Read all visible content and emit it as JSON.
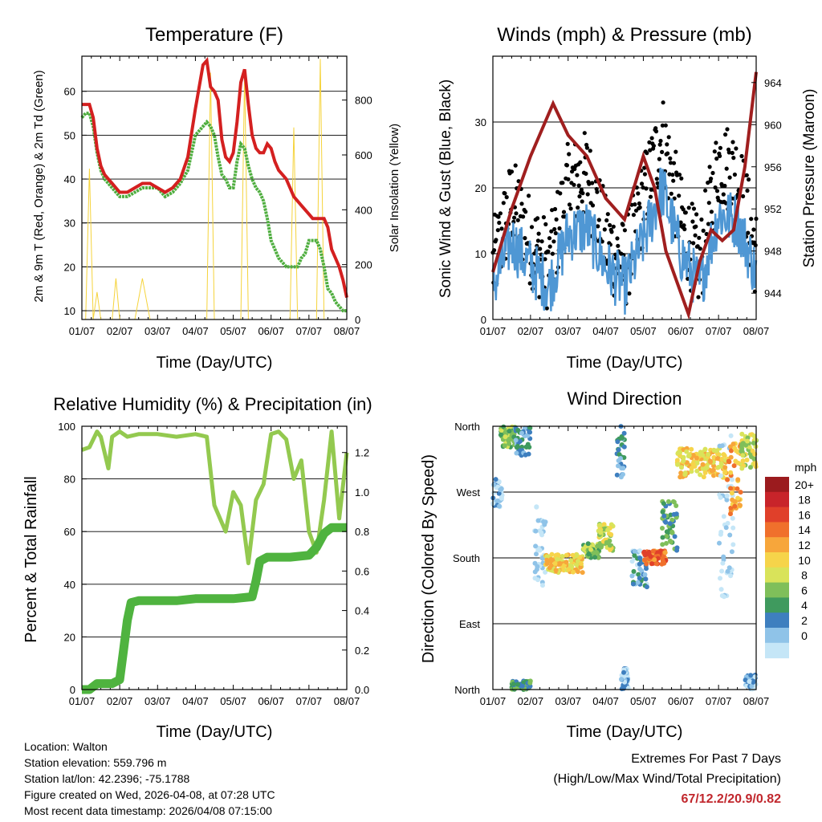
{
  "footer": {
    "location": "Location: Walton",
    "elevation": "Station elevation: 559.796 m",
    "latlon": "Station lat/lon: 42.2396; -75.1788",
    "created": "Figure created on Wed, 2026-04-08, at 07:28 UTC",
    "recent": "Most recent data timestamp: 2026/04/08 07:15:00",
    "extremes_title": "Extremes For Past 7 Days",
    "extremes_sub": "(High/Low/Max Wind/Total Precipitation)",
    "extremes_values": "67/12.2/20.9/0.82"
  },
  "colors": {
    "temp": "#d42020",
    "dewpoint": "#4fae3f",
    "solar": "#f5d33b",
    "wind": "#4f97d4",
    "gust": "#000000",
    "pressure": "#a01f1f",
    "rh": "#93c94f",
    "precip": "#4fb33f"
  },
  "chart_data": [
    {
      "type": "line",
      "title": "Temperature (F)",
      "xlabel": "Time (Day/UTC)",
      "ylabel": "2m & 9m T (Red, Orange) & 2m Td (Green)",
      "y2label": "Solar Insolation (Yellow)",
      "x_ticks": [
        "01/07",
        "02/07",
        "03/07",
        "04/07",
        "05/07",
        "06/07",
        "07/07",
        "08/07"
      ],
      "ylim": [
        8,
        68
      ],
      "y_ticks": [
        "10",
        "20",
        "30",
        "40",
        "50",
        "60"
      ],
      "y2lim": [
        0,
        960
      ],
      "y2_ticks": [
        "0",
        "200",
        "400",
        "600",
        "800"
      ],
      "x": [
        0,
        0.1,
        0.2,
        0.3,
        0.4,
        0.5,
        0.6,
        0.7,
        0.8,
        0.9,
        1.0,
        1.2,
        1.4,
        1.6,
        1.8,
        2.0,
        2.2,
        2.4,
        2.6,
        2.8,
        3.0,
        3.2,
        3.3,
        3.4,
        3.5,
        3.6,
        3.7,
        3.8,
        3.9,
        4.0,
        4.1,
        4.2,
        4.3,
        4.4,
        4.5,
        4.6,
        4.7,
        4.8,
        4.9,
        5.0,
        5.1,
        5.2,
        5.3,
        5.4,
        5.5,
        5.6,
        5.7,
        5.8,
        5.9,
        6.0,
        6.1,
        6.2,
        6.3,
        6.4,
        6.5,
        6.6,
        6.7,
        6.8,
        6.9,
        7.0
      ],
      "series": [
        {
          "name": "2m T",
          "values": [
            57,
            57,
            57,
            54,
            47,
            43,
            41,
            40,
            39,
            38,
            37,
            37,
            38,
            39,
            39,
            38,
            37,
            38,
            40,
            45,
            56,
            66,
            67,
            61,
            60,
            58,
            49,
            45,
            44,
            46,
            53,
            62,
            65,
            57,
            50,
            47,
            46,
            46,
            48,
            47,
            44,
            42,
            41,
            40,
            38,
            36,
            35,
            34,
            33,
            32,
            31,
            31,
            31,
            31,
            29,
            24,
            22,
            20,
            17,
            13
          ]
        },
        {
          "name": "2m Td",
          "values": [
            54,
            55,
            55,
            52,
            46,
            42,
            40,
            39,
            38,
            37,
            36,
            36,
            37,
            38,
            38,
            38,
            36,
            37,
            39,
            42,
            50,
            52,
            53,
            52,
            50,
            45,
            41,
            40,
            38,
            38,
            44,
            48,
            47,
            43,
            40,
            38,
            37,
            35,
            31,
            26,
            24,
            22,
            21,
            20,
            20,
            20,
            20,
            22,
            23,
            26,
            26,
            26,
            24,
            20,
            15,
            14,
            12,
            11,
            10,
            10
          ]
        },
        {
          "name": "Solar",
          "values": [
            0,
            0,
            550,
            0,
            100,
            0,
            0,
            0,
            0,
            150,
            0,
            0,
            0,
            150,
            0,
            0,
            0,
            0,
            0,
            0,
            0,
            0,
            0,
            900,
            0,
            0,
            0,
            0,
            0,
            0,
            0,
            0,
            900,
            0,
            0,
            0,
            0,
            0,
            0,
            0,
            0,
            0,
            0,
            0,
            0,
            700,
            0,
            0,
            0,
            0,
            0,
            0,
            950,
            0,
            0,
            0,
            0,
            0,
            0,
            0
          ]
        }
      ]
    },
    {
      "type": "scatter",
      "title": "Winds (mph) & Pressure (mb)",
      "xlabel": "Time (Day/UTC)",
      "ylabel": "Sonic Wind & Gust (Blue, Black)",
      "y2label": "Station Pressure (Maroon)",
      "x_ticks": [
        "01/07",
        "02/07",
        "03/07",
        "04/07",
        "05/07",
        "06/07",
        "07/07",
        "08/07"
      ],
      "ylim": [
        0,
        40
      ],
      "y_ticks": [
        "0",
        "10",
        "20",
        "30"
      ],
      "y2lim": [
        941.5,
        966.5
      ],
      "y2_ticks": [
        "944",
        "948",
        "952",
        "956",
        "960",
        "964"
      ],
      "x": [
        0,
        0.5,
        1.0,
        1.5,
        2.0,
        2.5,
        3.0,
        3.5,
        4.0,
        4.5,
        5.0,
        5.5,
        6.0,
        6.5,
        7.0
      ],
      "series": [
        {
          "name": "Sonic Wind",
          "values": [
            5,
            12,
            8,
            5,
            13,
            14,
            8,
            5,
            12,
            20,
            10,
            5,
            16,
            15,
            7
          ]
        },
        {
          "name": "Gust",
          "values": [
            8,
            18,
            12,
            8,
            20,
            22,
            12,
            8,
            18,
            28,
            15,
            8,
            24,
            22,
            10
          ]
        },
        {
          "name": "Pressure",
          "x": [
            0,
            0.5,
            1.0,
            1.6,
            2.0,
            2.5,
            3.0,
            3.5,
            4.0,
            4.3,
            4.6,
            5.0,
            5.2,
            5.5,
            5.8,
            6.1,
            6.4,
            6.7,
            7.0
          ],
          "values": [
            946,
            952,
            957,
            962,
            959,
            957,
            953,
            951,
            957,
            954,
            948,
            944,
            942,
            947,
            950,
            949,
            950,
            956,
            965
          ]
        }
      ]
    },
    {
      "type": "line",
      "title": "Relative Humidity (%) & Precipitation (in)",
      "xlabel": "Time (Day/UTC)",
      "ylabel": "Percent & Total Rainfall",
      "x_ticks": [
        "01/07",
        "02/07",
        "03/07",
        "04/07",
        "05/07",
        "06/07",
        "07/07",
        "08/07"
      ],
      "ylim": [
        0,
        100
      ],
      "y_ticks": [
        "0",
        "20",
        "40",
        "60",
        "80",
        "100"
      ],
      "y2lim": [
        0,
        1.333
      ],
      "y2_ticks": [
        "0.0",
        "0.2",
        "0.4",
        "0.6",
        "0.8",
        "1.0",
        "1.2"
      ],
      "series": [
        {
          "name": "RH",
          "x": [
            0,
            0.2,
            0.4,
            0.5,
            0.6,
            0.7,
            0.8,
            1.0,
            1.2,
            1.5,
            2.0,
            2.5,
            3.0,
            3.3,
            3.5,
            3.8,
            4.0,
            4.2,
            4.4,
            4.6,
            4.8,
            5.0,
            5.2,
            5.4,
            5.6,
            5.8,
            6.0,
            6.2,
            6.4,
            6.6,
            6.8,
            7.0
          ],
          "values": [
            91,
            92,
            98,
            96,
            90,
            84,
            96,
            98,
            96,
            97,
            97,
            96,
            97,
            96,
            70,
            60,
            75,
            70,
            48,
            72,
            78,
            97,
            98,
            95,
            80,
            87,
            60,
            52,
            72,
            98,
            65,
            90
          ]
        },
        {
          "name": "Precipitation",
          "x": [
            0,
            0.2,
            0.4,
            0.8,
            1.0,
            1.1,
            1.2,
            1.3,
            1.5,
            2.0,
            2.5,
            3.0,
            3.5,
            4.0,
            4.5,
            4.6,
            4.7,
            4.9,
            5.0,
            5.5,
            6.0,
            6.2,
            6.4,
            6.6,
            7.0
          ],
          "values": [
            0,
            0,
            0.03,
            0.03,
            0.05,
            0.2,
            0.35,
            0.44,
            0.45,
            0.45,
            0.45,
            0.46,
            0.46,
            0.46,
            0.47,
            0.55,
            0.65,
            0.67,
            0.67,
            0.67,
            0.68,
            0.72,
            0.79,
            0.82,
            0.82
          ]
        }
      ]
    },
    {
      "type": "scatter",
      "title": "Wind Direction",
      "xlabel": "Time (Day/UTC)",
      "ylabel": "Direction (Colored By Speed)",
      "x_ticks": [
        "01/07",
        "02/07",
        "03/07",
        "04/07",
        "05/07",
        "06/07",
        "07/07",
        "08/07"
      ],
      "y_ticks": [
        "North",
        "East",
        "South",
        "West",
        "North"
      ],
      "ylim": [
        0,
        360
      ],
      "legend_title": "mph",
      "legend_labels": [
        "20+",
        "18",
        "16",
        "14",
        "12",
        "10",
        "8",
        "6",
        "4",
        "2",
        "0"
      ],
      "legend_colors": [
        "#9b1b1e",
        "#c8242a",
        "#e0402a",
        "#f0702c",
        "#f7a63b",
        "#f6d44a",
        "#d9e35a",
        "#7fbf5a",
        "#3f9a5e",
        "#3e7fbf",
        "#8fc3e8",
        "#c5e6f7"
      ],
      "clusters": [
        {
          "x0": 0.0,
          "x1": 0.25,
          "d0": 250,
          "d1": 290,
          "speed": 4
        },
        {
          "x0": 0.2,
          "x1": 0.6,
          "d0": 330,
          "d1": 360,
          "speed": 10
        },
        {
          "x0": 0.6,
          "x1": 1.0,
          "d0": 320,
          "d1": 360,
          "speed": 6
        },
        {
          "x0": 0.5,
          "x1": 1.0,
          "d0": 0,
          "d1": 12,
          "speed": 8
        },
        {
          "x0": 1.1,
          "x1": 1.4,
          "d0": 140,
          "d1": 250,
          "speed": 2
        },
        {
          "x0": 1.4,
          "x1": 2.4,
          "d0": 160,
          "d1": 185,
          "speed": 14
        },
        {
          "x0": 2.4,
          "x1": 2.9,
          "d0": 180,
          "d1": 200,
          "speed": 10
        },
        {
          "x0": 2.8,
          "x1": 3.2,
          "d0": 190,
          "d1": 230,
          "speed": 12
        },
        {
          "x0": 3.3,
          "x1": 3.5,
          "d0": 290,
          "d1": 360,
          "speed": 6
        },
        {
          "x0": 3.4,
          "x1": 3.6,
          "d0": 0,
          "d1": 30,
          "speed": 4
        },
        {
          "x0": 3.7,
          "x1": 4.1,
          "d0": 140,
          "d1": 190,
          "speed": 5
        },
        {
          "x0": 4.0,
          "x1": 4.6,
          "d0": 170,
          "d1": 190,
          "speed": 18
        },
        {
          "x0": 4.5,
          "x1": 4.9,
          "d0": 190,
          "d1": 260,
          "speed": 8
        },
        {
          "x0": 4.9,
          "x1": 6.2,
          "d0": 290,
          "d1": 330,
          "speed": 14
        },
        {
          "x0": 6.0,
          "x1": 6.4,
          "d0": 120,
          "d1": 360,
          "speed": 2
        },
        {
          "x0": 6.2,
          "x1": 6.6,
          "d0": 240,
          "d1": 340,
          "speed": 16
        },
        {
          "x0": 6.6,
          "x1": 7.0,
          "d0": 300,
          "d1": 350,
          "speed": 12
        },
        {
          "x0": 6.7,
          "x1": 7.0,
          "d0": 0,
          "d1": 20,
          "speed": 4
        }
      ]
    }
  ]
}
